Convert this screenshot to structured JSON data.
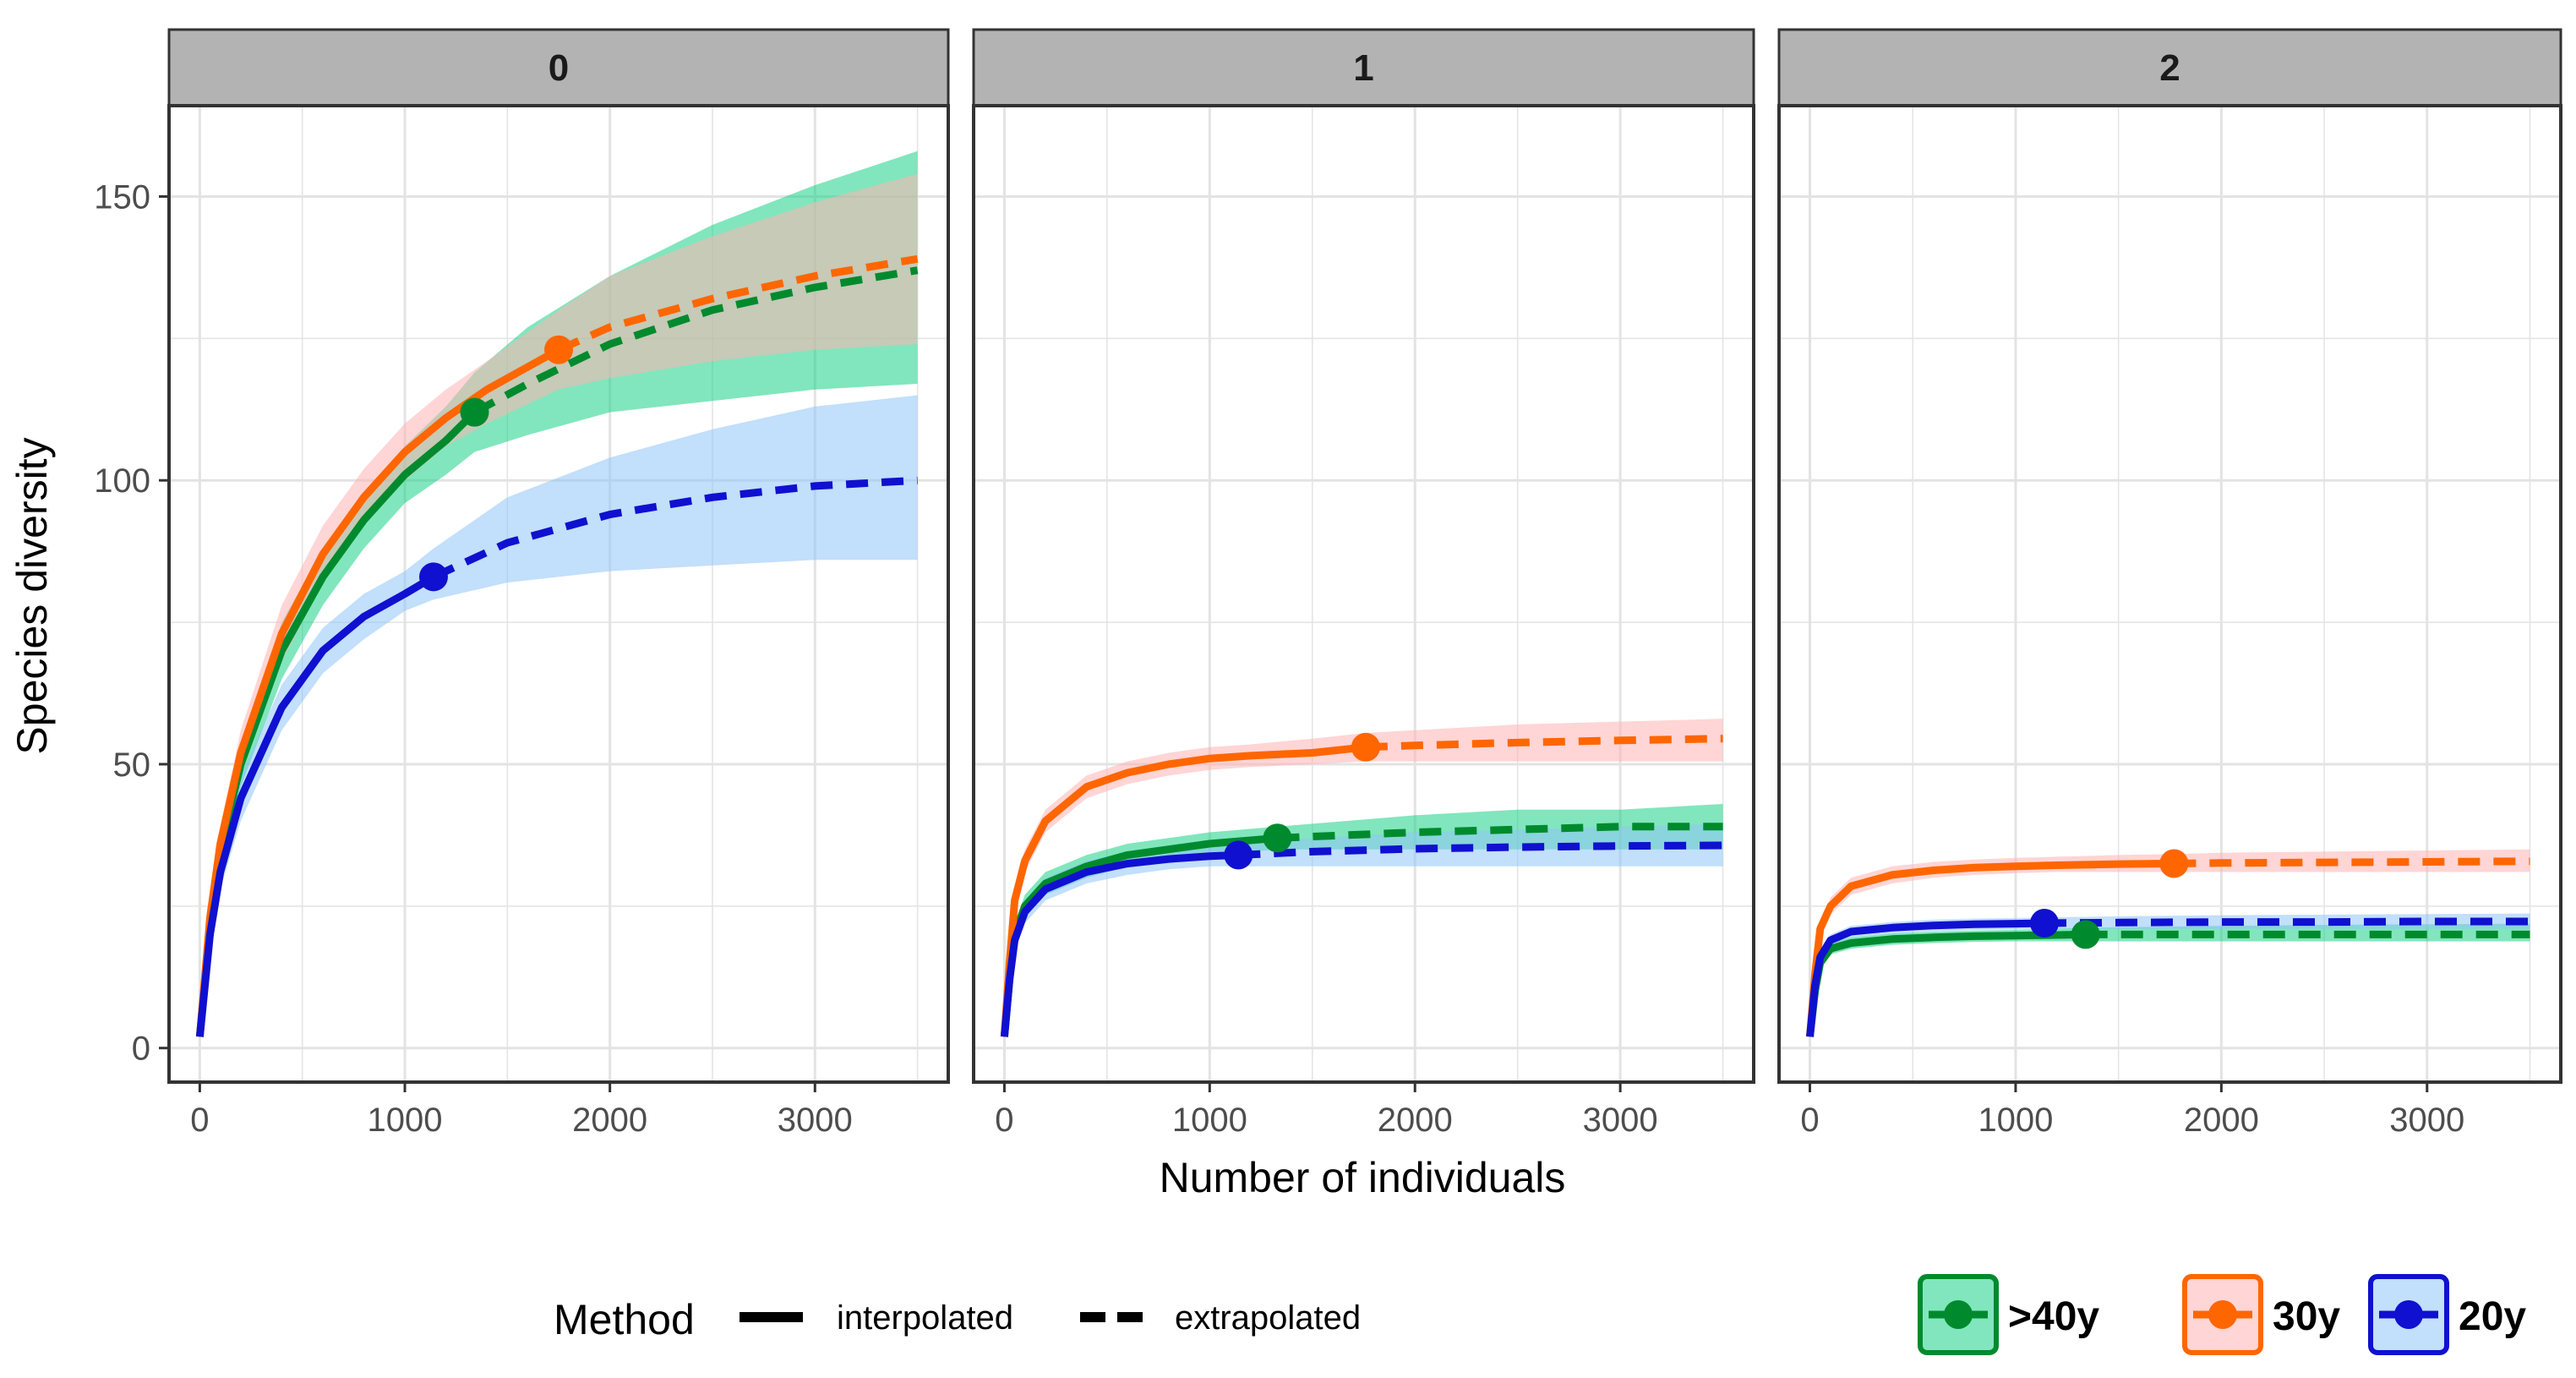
{
  "chart_data": {
    "type": "line",
    "facets": [
      {
        "label": "0",
        "series": [
          {
            "name": ">40y",
            "x": [
              0,
              50,
              100,
              200,
              400,
              600,
              800,
              1000,
              1200,
              1340,
              1600,
              2000,
              2500,
              3000,
              3500
            ],
            "y": [
              2,
              22,
              35,
              50,
              70,
              83,
              93,
              101,
              107,
              112,
              117,
              124,
              130,
              134,
              137
            ],
            "lower": [
              2,
              20,
              32,
              46,
              65,
              78,
              88,
              96,
              101,
              105,
              108,
              112,
              114,
              116,
              117
            ],
            "upper": [
              2,
              24,
              38,
              54,
              75,
              88,
              98,
              106,
              113,
              119,
              127,
              136,
              145,
              152,
              158
            ],
            "observed": {
              "x": 1340,
              "y": 112
            }
          },
          {
            "name": "30y",
            "x": [
              0,
              50,
              100,
              200,
              400,
              600,
              800,
              1000,
              1200,
              1400,
              1750,
              2000,
              2500,
              3000,
              3500
            ],
            "y": [
              2,
              23,
              36,
              52,
              73,
              87,
              97,
              105,
              111,
              116,
              123,
              127,
              132,
              136,
              139
            ],
            "lower": [
              2,
              21,
              33,
              48,
              68,
              82,
              92,
              100,
              106,
              110,
              116,
              118,
              121,
              123,
              124
            ],
            "upper": [
              2,
              25,
              39,
              56,
              78,
              92,
              102,
              110,
              116,
              121,
              130,
              136,
              143,
              149,
              154
            ],
            "observed": {
              "x": 1750,
              "y": 123
            }
          },
          {
            "name": "20y",
            "x": [
              0,
              50,
              100,
              200,
              400,
              600,
              800,
              1000,
              1140,
              1500,
              2000,
              2500,
              3000,
              3500
            ],
            "y": [
              2,
              20,
              31,
              44,
              60,
              70,
              76,
              80,
              83,
              89,
              94,
              97,
              99,
              100
            ],
            "lower": [
              2,
              18,
              28,
              40,
              56,
              66,
              72,
              77,
              79,
              82,
              84,
              85,
              86,
              86
            ],
            "upper": [
              2,
              22,
              34,
              48,
              64,
              74,
              80,
              84,
              88,
              97,
              104,
              109,
              113,
              115
            ],
            "observed": {
              "x": 1140,
              "y": 83
            }
          }
        ]
      },
      {
        "label": "1",
        "series": [
          {
            "name": ">40y",
            "x": [
              0,
              25,
              50,
              100,
              200,
              400,
              600,
              800,
              1000,
              1330,
              2000,
              2500,
              3000,
              3500
            ],
            "y": [
              2,
              12,
              20,
              25,
              29,
              32,
              34,
              35,
              36,
              37,
              38,
              38.5,
              39,
              39
            ],
            "lower": [
              2,
              11,
              18,
              23,
              27,
              30,
              32,
              33,
              34,
              35,
              35,
              35,
              35,
              35
            ],
            "upper": [
              2,
              13,
              22,
              27,
              31,
              34,
              36,
              37,
              38,
              39,
              41,
              42,
              42,
              43
            ],
            "observed": {
              "x": 1330,
              "y": 37
            }
          },
          {
            "name": "30y",
            "x": [
              0,
              25,
              50,
              100,
              200,
              400,
              600,
              800,
              1000,
              1200,
              1500,
              1760,
              2000,
              2500,
              3000,
              3500
            ],
            "y": [
              2,
              15,
              26,
              33,
              40,
              46,
              48.5,
              50,
              51,
              51.5,
              52,
              53,
              53.3,
              53.8,
              54.2,
              54.5
            ],
            "lower": [
              2,
              14,
              24,
              31,
              38,
              44,
              46.5,
              48,
              49,
              49.5,
              50,
              50.5,
              50.5,
              50.5,
              50.5,
              50.5
            ],
            "upper": [
              2,
              16,
              28,
              35,
              42,
              48,
              50.5,
              52,
              53,
              53.5,
              54.5,
              55.5,
              56,
              57,
              57.5,
              58
            ],
            "observed": {
              "x": 1760,
              "y": 53
            }
          },
          {
            "name": "20y",
            "x": [
              0,
              25,
              50,
              100,
              200,
              400,
              600,
              800,
              1000,
              1140,
              1500,
              2000,
              2500,
              3000,
              3500
            ],
            "y": [
              2,
              12,
              19,
              24,
              28,
              31,
              32.5,
              33.3,
              33.8,
              34,
              34.6,
              35.1,
              35.4,
              35.6,
              35.7
            ],
            "lower": [
              2,
              11,
              17,
              22,
              26,
              29,
              30.5,
              31.5,
              32,
              32,
              32,
              32,
              32,
              32,
              32
            ],
            "upper": [
              2,
              13,
              21,
              26,
              30,
              33,
              34.5,
              35,
              35.5,
              36,
              37,
              38,
              38.5,
              39,
              39.5
            ],
            "observed": {
              "x": 1140,
              "y": 34
            }
          }
        ]
      },
      {
        "label": "2",
        "series": [
          {
            "name": ">40y",
            "x": [
              0,
              25,
              50,
              100,
              200,
              400,
              600,
              800,
              1000,
              1340,
              2000,
              2500,
              3000,
              3500
            ],
            "y": [
              2,
              10,
              15,
              17.5,
              18.5,
              19.2,
              19.5,
              19.7,
              19.8,
              20,
              20,
              20,
              20,
              20
            ],
            "lower": [
              2,
              9,
              14,
              16.5,
              17.5,
              18.2,
              18.5,
              18.7,
              18.8,
              18.8,
              18.8,
              18.8,
              18.8,
              18.8
            ],
            "upper": [
              2,
              11,
              16,
              18.5,
              19.5,
              20.2,
              20.5,
              20.7,
              20.8,
              21.2,
              21.5,
              21.7,
              21.8,
              21.9
            ],
            "observed": {
              "x": 1340,
              "y": 20
            }
          },
          {
            "name": "30y",
            "x": [
              0,
              25,
              50,
              100,
              200,
              400,
              600,
              800,
              1000,
              1200,
              1500,
              1770,
              2000,
              2500,
              3000,
              3500
            ],
            "y": [
              2,
              13,
              21,
              25,
              28.5,
              30.5,
              31.3,
              31.8,
              32,
              32.2,
              32.4,
              32.5,
              32.6,
              32.7,
              32.8,
              32.9
            ],
            "lower": [
              2,
              12,
              19.5,
              23.5,
              27,
              29,
              30,
              30.5,
              30.8,
              31,
              31,
              31,
              31,
              31,
              31,
              31
            ],
            "upper": [
              2,
              14,
              22.5,
              26.5,
              30,
              32,
              32.8,
              33.2,
              33.5,
              33.7,
              34,
              34.2,
              34.4,
              34.6,
              34.8,
              35
            ],
            "observed": {
              "x": 1770,
              "y": 32.5
            }
          },
          {
            "name": "20y",
            "x": [
              0,
              25,
              50,
              100,
              200,
              400,
              600,
              800,
              1000,
              1140,
              1500,
              2000,
              2500,
              3000,
              3500
            ],
            "y": [
              2,
              11,
              16,
              19,
              20.5,
              21.2,
              21.6,
              21.8,
              21.9,
              22,
              22.1,
              22.2,
              22.2,
              22.3,
              22.3
            ],
            "lower": [
              2,
              10,
              15,
              18,
              19.5,
              20.2,
              20.6,
              20.8,
              20.9,
              21,
              21,
              21,
              21,
              21,
              21
            ],
            "upper": [
              2,
              12,
              17,
              20,
              21.5,
              22.2,
              22.6,
              22.8,
              22.9,
              23,
              23.2,
              23.4,
              23.5,
              23.6,
              23.7
            ],
            "observed": {
              "x": 1140,
              "y": 22
            }
          }
        ]
      }
    ],
    "series_colors": {
      ">40y": "#008a2e",
      "30y": "#ff6600",
      "20y": "#1010d0"
    },
    "band_colors": {
      ">40y": "#19d186",
      "30y": "#ffb3b3",
      "20y": "#8fc4f7"
    },
    "xlabel": "Number of individuals",
    "ylabel": "Species diversity",
    "x_ticks": [
      0,
      1000,
      2000,
      3000
    ],
    "y_ticks": [
      0,
      50,
      100,
      150
    ],
    "xlim": [
      -150,
      3650
    ],
    "ylim": [
      -6,
      166
    ],
    "grid": true,
    "legend": {
      "position": "bottom",
      "method_title": "Method",
      "method_items": [
        "interpolated",
        "extrapolated"
      ],
      "group_items": [
        ">40y",
        "30y",
        "20y"
      ]
    }
  }
}
